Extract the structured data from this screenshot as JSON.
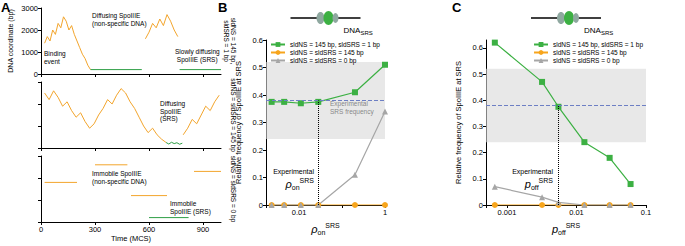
{
  "chart_data": [
    {
      "panel": "A",
      "type": "line",
      "x_label": "Time (MCS)",
      "y_label": "DNA coordinate (bp)",
      "grid": false,
      "subplots": [
        {
          "label": "sldNS = 145 bp, sldSRS = 1 bp",
          "tick_labels": "y",
          "xlim": [
            0,
            1000
          ],
          "xticks": [
            0,
            300,
            600,
            900
          ],
          "ylim": [
            0,
            3000
          ],
          "yticks": [
            0,
            1000,
            2000,
            3000
          ],
          "annotations": [
            "Binding event",
            "Diffusing SpoIIIE (non-specific DNA)",
            "Slowly diffusing SpoIIIE (SRS)"
          ],
          "series": [
            {
              "color": "#f3a52c",
              "x": [
                20,
                35,
                50,
                65,
                80,
                95,
                110,
                125,
                140,
                155,
                170,
                185,
                200,
                215,
                230,
                245,
                260,
                275,
                290,
                580,
                600,
                620,
                640,
                660,
                680,
                700,
                720,
                740,
                760
              ],
              "values": [
                1400,
                1700,
                1500,
                2000,
                1800,
                2300,
                2100,
                2600,
                2400,
                2000,
                2200,
                1800,
                1500,
                1200,
                900,
                700,
                400,
                200,
                null,
                1600,
                1900,
                2300,
                2100,
                2500,
                2200,
                2700,
                2400,
                2000,
                1700
              ]
            },
            {
              "color": "#2e9e45",
              "x": [
                275,
                560,
                570,
                770,
                1000
              ],
              "values": [
                200,
                200,
                null,
                200,
                200
              ]
            }
          ]
        },
        {
          "label": "sldNS = sldSRS = 145 bp",
          "tick_labels": false,
          "xlim": [
            0,
            1000
          ],
          "xticks": [
            0,
            300,
            600,
            900
          ],
          "ylim": [
            0,
            3000
          ],
          "yticks": [
            0,
            1000,
            2000,
            3000
          ],
          "annotations": [
            "Diffusing SpoIIIE (SRS)"
          ],
          "series": [
            {
              "color": "#f3a52c",
              "x": [
                20,
                45,
                70,
                95,
                120,
                145,
                170,
                195,
                220,
                245,
                270,
                295,
                320,
                345,
                370,
                395,
                420,
                445,
                470,
                495,
                520,
                545,
                570,
                595,
                620,
                645,
                670,
                695,
                720,
                790,
                815,
                840,
                865,
                890,
                915,
                940,
                965,
                990
              ],
              "values": [
                2500,
                2200,
                2600,
                2300,
                1900,
                2100,
                1700,
                1400,
                1600,
                1200,
                900,
                1100,
                1500,
                1800,
                2200,
                2000,
                2400,
                2700,
                2500,
                2100,
                1800,
                1400,
                1000,
                700,
                900,
                600,
                400,
                250,
                null,
                600,
                900,
                1300,
                1100,
                1500,
                1900,
                1700,
                2100,
                2400
              ]
            },
            {
              "color": "#2e9e45",
              "x": [
                695,
                710,
                725,
                740,
                755,
                770,
                785
              ],
              "values": [
                250,
                180,
                260,
                200,
                240,
                170,
                220
              ]
            }
          ]
        },
        {
          "label": "sldNS = sldSRS = 0 bp",
          "tick_labels": "x",
          "xlim": [
            0,
            1000
          ],
          "xticks": [
            0,
            300,
            600,
            900
          ],
          "ylim": [
            0,
            3000
          ],
          "yticks": [
            0,
            1000,
            2000,
            3000
          ],
          "annotations": [
            "Immobile SpoIIIE (non-specific DNA)",
            "Immobile SpoIIIE (SRS)"
          ],
          "series": [
            {
              "color": "#f3a52c",
              "x": [
                20,
                200,
                210,
                300,
                480,
                490,
                500,
                700,
                710,
                850,
                1000
              ],
              "values": [
                1800,
                1800,
                null,
                2600,
                2600,
                null,
                1200,
                1200,
                null,
                2300,
                2300
              ]
            },
            {
              "color": "#2e9e45",
              "x": [
                600,
                820
              ],
              "values": [
                200,
                200
              ]
            }
          ]
        }
      ]
    },
    {
      "panel": "B",
      "type": "line",
      "log": "x",
      "grid": false,
      "legend": "upper left",
      "x_label": {
        "base": "ρ",
        "sub": "on",
        "sup": "SRS"
      },
      "y_label": "Relative frequency of SpoIIIE at SRS",
      "schematic_label": {
        "base": "DNA",
        "sub": "SRS"
      },
      "xlim": [
        0.0017,
        1
      ],
      "xticks": [
        0.01,
        1
      ],
      "ylim": [
        0,
        0.6
      ],
      "yticks": [
        0,
        0.1,
        0.2,
        0.3,
        0.4,
        0.5,
        0.6
      ],
      "x": [
        0.0023,
        0.0045,
        0.011,
        0.028,
        0.2,
        1
      ],
      "series": [
        {
          "name": "sldNS = 145 bp, sldSRS = 1 bp",
          "color": "#3cb043",
          "marker": "square",
          "values": [
            0.375,
            0.375,
            0.37,
            0.375,
            0.41,
            0.51
          ]
        },
        {
          "name": "sldNS = sldSRS = 145 bp",
          "color": "#f7a51c",
          "marker": "circle",
          "values": [
            0,
            0,
            0,
            0,
            0,
            0
          ]
        },
        {
          "name": "sldNS = sldSRS = 0 bp",
          "color": "#a6a6a6",
          "marker": "triangle",
          "values": [
            0,
            0,
            0,
            0,
            0.11,
            0.34
          ]
        }
      ],
      "srs_frequency_range": [
        0.24,
        0.52
      ],
      "experimental_srs_frequency": 0.38,
      "experimental_x": 0.028,
      "annotations": [
        "Experimental SRS frequency"
      ],
      "experimental_x_label": {
        "text": "Experimental",
        "base": "ρ",
        "sub": "on",
        "sup": "SRS"
      }
    },
    {
      "panel": "C",
      "type": "line",
      "log": "x",
      "grid": false,
      "legend": "upper right",
      "x_label": {
        "base": "p",
        "sub": "off",
        "sup": "SRS"
      },
      "y_label": "Relative frequency of SpoIIIE at SRS",
      "schematic_label": {
        "base": "DNA",
        "sub": "SRS"
      },
      "xlim": [
        0.0005,
        0.1
      ],
      "xticks": [
        0.001,
        0.01,
        0.1
      ],
      "ylim": [
        0,
        0.63
      ],
      "yticks": [
        0,
        0.1,
        0.2,
        0.3,
        0.4,
        0.5,
        0.6
      ],
      "x": [
        0.00067,
        0.0032,
        0.0055,
        0.013,
        0.03,
        0.06
      ],
      "series": [
        {
          "name": "sldNS = 145 bp, sldSRS = 1 bp",
          "color": "#3cb043",
          "marker": "square",
          "values": [
            0.62,
            0.47,
            0.375,
            0.24,
            0.18,
            0.08
          ]
        },
        {
          "name": "sldNS = sldSRS = 145 bp",
          "color": "#f7a51c",
          "marker": "circle",
          "values": [
            0,
            0,
            0,
            0,
            0,
            0
          ]
        },
        {
          "name": "sldNS = sldSRS = 0 bp",
          "color": "#a6a6a6",
          "marker": "triangle",
          "values": [
            0.07,
            0.03,
            0.01,
            0,
            0,
            0
          ]
        }
      ],
      "srs_frequency_range": [
        0.24,
        0.52
      ],
      "experimental_srs_frequency": 0.38,
      "experimental_x": 0.0055,
      "experimental_x_label": {
        "text": "Experimental",
        "base": "p",
        "sub": "off",
        "sup": "SRS"
      }
    }
  ]
}
